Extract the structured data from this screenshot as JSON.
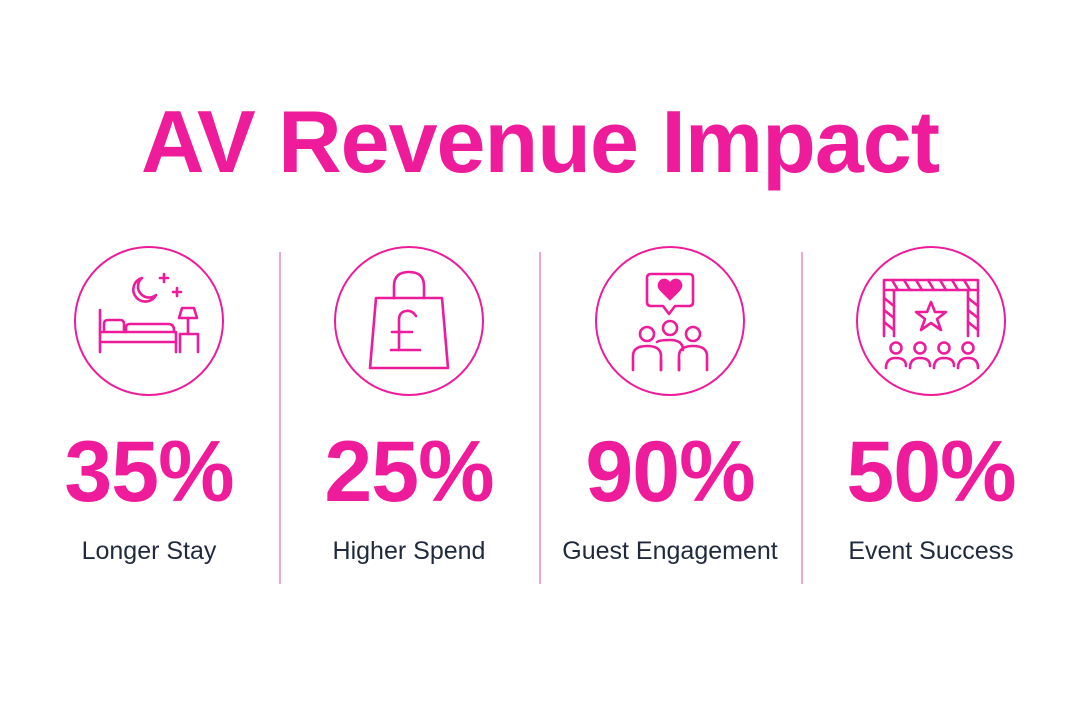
{
  "title": "AV Revenue Impact",
  "colors": {
    "accent": "#ee1c9b",
    "text": "#1f2a3c",
    "divider": "#f2a6cf",
    "background": "#ffffff"
  },
  "stats": [
    {
      "value": "35%",
      "label": "Longer Stay",
      "icon": "bed-moon-icon"
    },
    {
      "value": "25%",
      "label": "Higher Spend",
      "icon": "shopping-bag-pound-icon"
    },
    {
      "value": "90%",
      "label": "Guest Engagement",
      "icon": "audience-heart-icon"
    },
    {
      "value": "50%",
      "label": "Event Success",
      "icon": "stage-star-icon"
    }
  ]
}
